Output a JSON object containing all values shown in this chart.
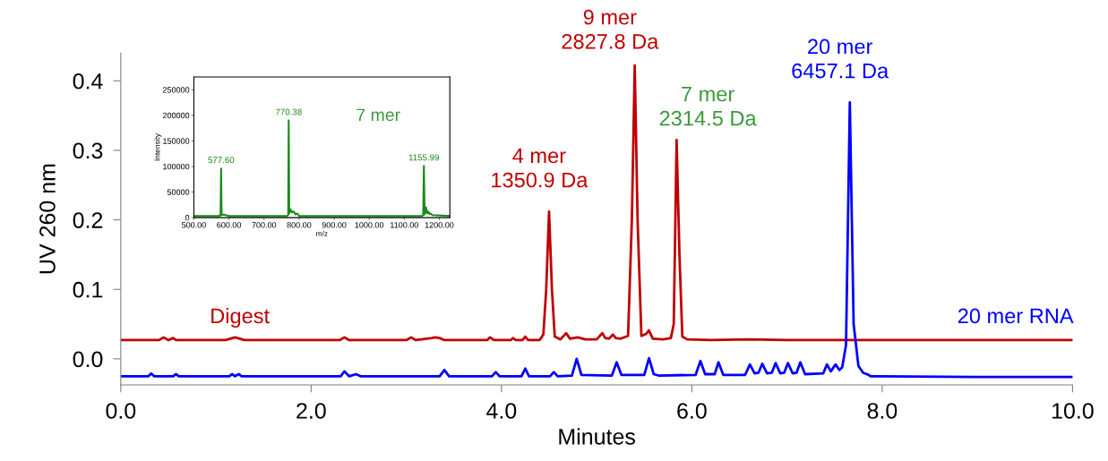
{
  "chart_data": [
    {
      "type": "line",
      "xlabel": "Minutes",
      "ylabel": "UV 260 nm",
      "xlim": [
        0,
        10
      ],
      "ylim": [
        -0.0375,
        0.44
      ],
      "xticks": [
        {
          "value": 0,
          "label": "0.0"
        },
        {
          "value": 2,
          "label": "2.0"
        },
        {
          "value": 4,
          "label": "4.0"
        },
        {
          "value": 6,
          "label": "6.0"
        },
        {
          "value": 8,
          "label": "8.0"
        },
        {
          "value": 10,
          "label": "10.0"
        }
      ],
      "yticks": [
        {
          "value": 0,
          "label": "0.0"
        },
        {
          "value": 0.1,
          "label": "0.1"
        },
        {
          "value": 0.2,
          "label": "0.2"
        },
        {
          "value": 0.3,
          "label": "0.3"
        },
        {
          "value": 0.4,
          "label": "0.4"
        }
      ],
      "grid": false,
      "legend": false,
      "marker": "none",
      "line_style": "solid",
      "series": [
        {
          "name": "Digest",
          "color": "#c00000",
          "x": [
            0,
            0.4,
            0.45,
            0.5,
            0.55,
            0.58,
            0.62,
            1.1,
            1.2,
            1.3,
            2.3,
            2.35,
            2.4,
            3.0,
            3.05,
            3.1,
            3.27,
            3.3,
            3.35,
            3.4,
            3.85,
            3.88,
            3.92,
            4.1,
            4.12,
            4.15,
            4.22,
            4.25,
            4.28,
            4.4,
            4.44,
            4.47,
            4.5,
            4.53,
            4.56,
            4.62,
            4.68,
            4.72,
            4.8,
            4.88,
            5.0,
            5.06,
            5.09,
            5.13,
            5.17,
            5.2,
            5.25,
            5.33,
            5.37,
            5.4,
            5.43,
            5.47,
            5.52,
            5.55,
            5.59,
            5.7,
            5.78,
            5.81,
            5.84,
            5.87,
            5.9,
            5.95,
            6.2,
            6.6,
            7.0,
            8.0,
            10.0
          ],
          "values": [
            0.027,
            0.027,
            0.031,
            0.027,
            0.03,
            0.027,
            0.027,
            0.027,
            0.031,
            0.027,
            0.027,
            0.031,
            0.027,
            0.027,
            0.031,
            0.027,
            0.03,
            0.031,
            0.03,
            0.027,
            0.027,
            0.031,
            0.027,
            0.027,
            0.03,
            0.027,
            0.027,
            0.032,
            0.027,
            0.027,
            0.035,
            0.1,
            0.212,
            0.1,
            0.032,
            0.028,
            0.037,
            0.029,
            0.031,
            0.028,
            0.028,
            0.037,
            0.03,
            0.029,
            0.035,
            0.03,
            0.029,
            0.033,
            0.2,
            0.422,
            0.2,
            0.033,
            0.036,
            0.041,
            0.029,
            0.028,
            0.03,
            0.05,
            0.315,
            0.15,
            0.032,
            0.028,
            0.027,
            0.028,
            0.027,
            0.027,
            0.027
          ]
        },
        {
          "name": "20 mer RNA",
          "color": "#0000ff",
          "x": [
            0,
            0.29,
            0.32,
            0.35,
            0.55,
            0.58,
            0.61,
            1.14,
            1.17,
            1.2,
            1.24,
            1.27,
            2.31,
            2.35,
            2.4,
            2.47,
            2.52,
            3.35,
            3.4,
            3.45,
            3.9,
            3.94,
            3.98,
            4.21,
            4.25,
            4.29,
            4.51,
            4.55,
            4.59,
            4.74,
            4.79,
            4.84,
            5.16,
            5.21,
            5.26,
            5.5,
            5.55,
            5.6,
            5.65,
            6.04,
            6.09,
            6.14,
            6.24,
            6.28,
            6.33,
            6.56,
            6.61,
            6.66,
            6.7,
            6.74,
            6.79,
            6.84,
            6.88,
            6.93,
            6.97,
            7.01,
            7.06,
            7.1,
            7.14,
            7.19,
            7.38,
            7.42,
            7.46,
            7.51,
            7.55,
            7.58,
            7.62,
            7.66,
            7.7,
            7.75,
            7.8,
            7.84,
            7.88,
            8.0,
            9.0,
            10.0
          ],
          "values": [
            -0.025,
            -0.025,
            -0.021,
            -0.025,
            -0.025,
            -0.022,
            -0.025,
            -0.025,
            -0.022,
            -0.025,
            -0.022,
            -0.025,
            -0.025,
            -0.018,
            -0.025,
            -0.022,
            -0.025,
            -0.025,
            -0.016,
            -0.025,
            -0.025,
            -0.019,
            -0.025,
            -0.025,
            -0.014,
            -0.025,
            -0.025,
            -0.019,
            -0.025,
            -0.024,
            0.0,
            -0.023,
            -0.024,
            -0.005,
            -0.023,
            -0.023,
            0.001,
            -0.022,
            -0.024,
            -0.023,
            -0.003,
            -0.022,
            -0.022,
            -0.005,
            -0.023,
            -0.023,
            -0.008,
            -0.021,
            -0.02,
            -0.007,
            -0.021,
            -0.02,
            -0.006,
            -0.021,
            -0.02,
            -0.006,
            -0.021,
            -0.02,
            -0.005,
            -0.022,
            -0.021,
            -0.008,
            -0.018,
            -0.008,
            -0.016,
            -0.012,
            0.02,
            0.369,
            0.05,
            -0.01,
            -0.02,
            -0.022,
            -0.025,
            -0.025,
            -0.026,
            -0.026
          ]
        }
      ],
      "annotations": [
        {
          "text": "4 mer\n1350.9 Da",
          "x": 4.5,
          "y": 0.212
        },
        {
          "text": "9 mer\n2827.8 Da",
          "x": 5.4,
          "y": 0.422
        },
        {
          "text": "7 mer\n2314.5 Da",
          "x": 5.84,
          "y": 0.315
        },
        {
          "text": "20 mer\n6457.1 Da",
          "x": 7.66,
          "y": 0.369
        }
      ]
    },
    {
      "type": "line",
      "xlabel": "m/z",
      "ylabel": "Intensity",
      "xlim": [
        500,
        1230
      ],
      "ylim": [
        0,
        275000
      ],
      "xticks": [
        {
          "value": 500,
          "label": "500.00"
        },
        {
          "value": 600,
          "label": "600.00"
        },
        {
          "value": 700,
          "label": "700.00"
        },
        {
          "value": 800,
          "label": "800.00"
        },
        {
          "value": 900,
          "label": "900.00"
        },
        {
          "value": 1000,
          "label": "1000.00"
        },
        {
          "value": 1100,
          "label": "1100.00"
        },
        {
          "value": 1200,
          "label": "1200.00"
        }
      ],
      "yticks": [
        0,
        50000,
        100000,
        150000,
        200000,
        250000
      ],
      "grid": false,
      "legend": false,
      "marker": "none",
      "line_style": "solid",
      "series": [
        {
          "color": "#1a8a1a",
          "x": [
            500,
            540,
            570,
            576,
            577.6,
            579,
            585,
            600,
            700,
            765,
            769,
            770.38,
            772,
            776,
            780,
            785,
            790,
            795,
            800,
            900,
            1000,
            1100,
            1150,
            1154,
            1155.99,
            1158,
            1162,
            1165,
            1168,
            1172,
            1175,
            1180,
            1230
          ],
          "values": [
            3000,
            3000,
            3000,
            4000,
            96000,
            5000,
            6000,
            3000,
            3000,
            3000,
            5000,
            190000,
            8000,
            16000,
            10000,
            12000,
            6000,
            8000,
            3000,
            3000,
            3000,
            3000,
            3000,
            5000,
            101000,
            6000,
            20000,
            8000,
            12000,
            7000,
            8000,
            5000,
            3000
          ]
        }
      ],
      "annotations": [
        {
          "text": "577.60",
          "x": 577.6,
          "y": 96000
        },
        {
          "text": "770.38",
          "x": 770.38,
          "y": 190000
        },
        {
          "text": "1155.99",
          "x": 1155.99,
          "y": 101000
        },
        "7 mer"
      ]
    }
  ]
}
